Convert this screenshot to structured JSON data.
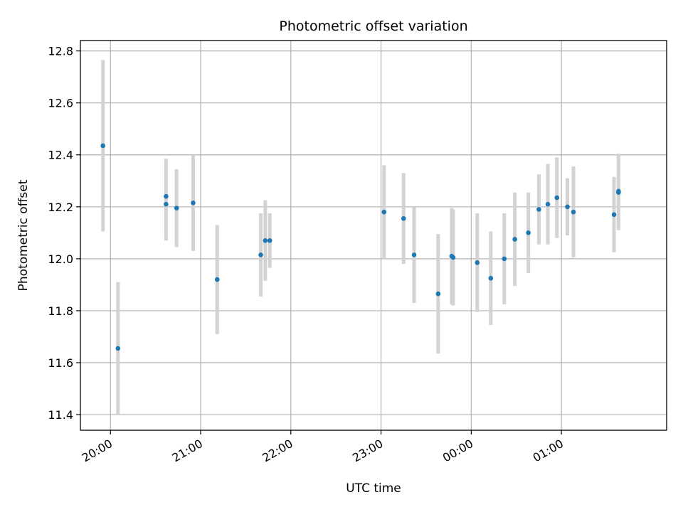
{
  "chart_data": {
    "type": "scatter",
    "title": "Photometric offset variation",
    "xlabel": "UTC time",
    "ylabel": "Photometric offset",
    "x_unit": "UTC time (HH:MM), night spanning midnight",
    "xlim": [
      "19:40",
      "02:10"
    ],
    "ylim": [
      11.34,
      12.84
    ],
    "x_ticks": [
      "20:00",
      "21:00",
      "22:00",
      "23:00",
      "00:00",
      "01:00"
    ],
    "y_ticks": [
      "11.4",
      "11.6",
      "11.8",
      "12.0",
      "12.2",
      "12.4",
      "12.6",
      "12.8"
    ],
    "grid": true,
    "x_tick_rotation_deg": 30,
    "colors": {
      "marker": "#1f77b4",
      "errorbar": "#d3d3d3",
      "grid": "#b0b0b0"
    },
    "points": [
      {
        "x": "19:55",
        "y": 12.435,
        "err": 0.33
      },
      {
        "x": "20:05",
        "y": 11.655,
        "err": 0.255
      },
      {
        "x": "20:37",
        "y": 12.21,
        "err": 0.14
      },
      {
        "x": "20:37",
        "y": 12.24,
        "err": 0.145
      },
      {
        "x": "20:44",
        "y": 12.195,
        "err": 0.15
      },
      {
        "x": "20:55",
        "y": 12.215,
        "err": 0.185
      },
      {
        "x": "21:11",
        "y": 11.92,
        "err": 0.21
      },
      {
        "x": "21:40",
        "y": 12.015,
        "err": 0.16
      },
      {
        "x": "21:43",
        "y": 12.07,
        "err": 0.155
      },
      {
        "x": "21:46",
        "y": 12.07,
        "err": 0.105
      },
      {
        "x": "23:02",
        "y": 12.18,
        "err": 0.18
      },
      {
        "x": "23:15",
        "y": 12.155,
        "err": 0.175
      },
      {
        "x": "23:22",
        "y": 12.015,
        "err": 0.185
      },
      {
        "x": "23:38",
        "y": 11.865,
        "err": 0.23
      },
      {
        "x": "23:47",
        "y": 12.01,
        "err": 0.185
      },
      {
        "x": "23:48",
        "y": 12.005,
        "err": 0.185
      },
      {
        "x": "00:04",
        "y": 11.985,
        "err": 0.19
      },
      {
        "x": "00:13",
        "y": 11.925,
        "err": 0.18
      },
      {
        "x": "00:22",
        "y": 12.0,
        "err": 0.175
      },
      {
        "x": "00:29",
        "y": 12.075,
        "err": 0.18
      },
      {
        "x": "00:38",
        "y": 12.1,
        "err": 0.155
      },
      {
        "x": "00:45",
        "y": 12.19,
        "err": 0.135
      },
      {
        "x": "00:51",
        "y": 12.21,
        "err": 0.155
      },
      {
        "x": "00:57",
        "y": 12.235,
        "err": 0.155
      },
      {
        "x": "01:04",
        "y": 12.2,
        "err": 0.11
      },
      {
        "x": "01:08",
        "y": 12.18,
        "err": 0.175
      },
      {
        "x": "01:35",
        "y": 12.17,
        "err": 0.145
      },
      {
        "x": "01:38",
        "y": 12.255,
        "err": 0.145
      },
      {
        "x": "01:38",
        "y": 12.26,
        "err": 0.145
      }
    ]
  }
}
